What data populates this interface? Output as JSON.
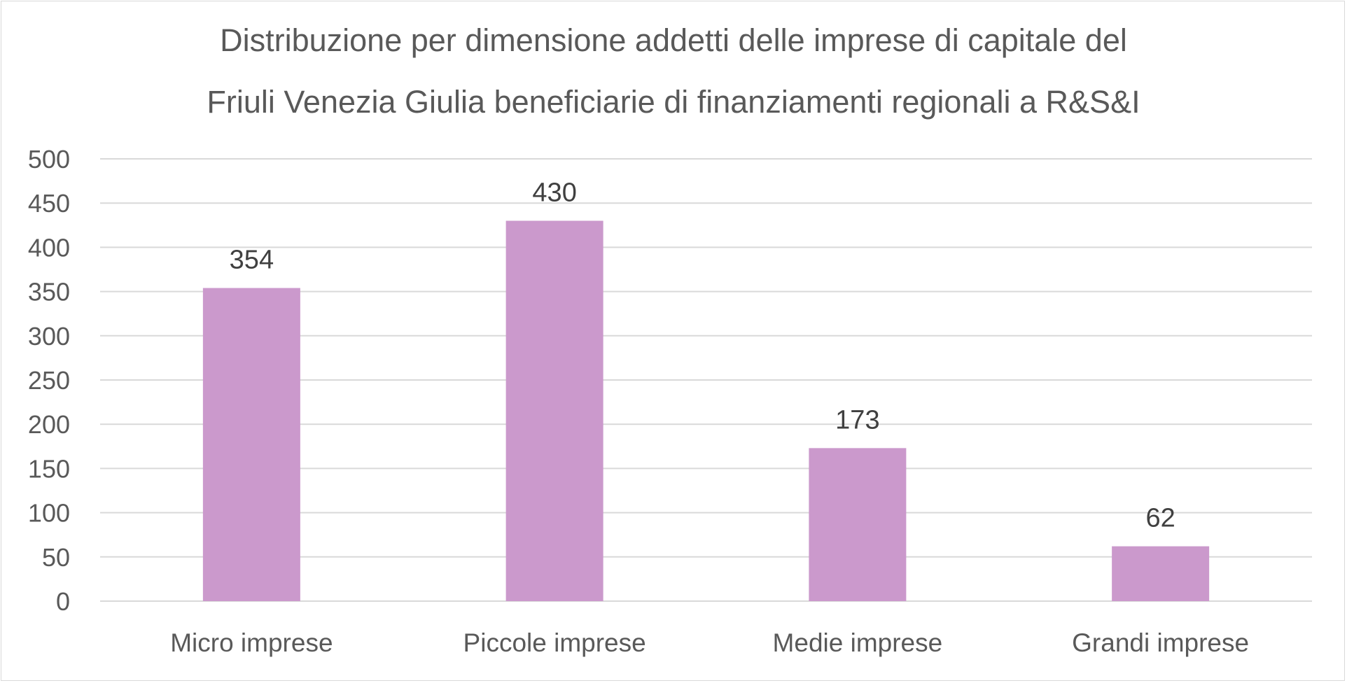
{
  "chart_data": {
    "type": "bar",
    "title_lines": [
      "Distribuzione per dimensione addetti delle imprese di capitale del",
      "Friuli Venezia Giulia beneficiarie di finanziamenti regionali a R&S&I"
    ],
    "categories": [
      "Micro imprese",
      "Piccole imprese",
      "Medie imprese",
      "Grandi imprese"
    ],
    "values": [
      354,
      430,
      173,
      62
    ],
    "data_labels": [
      "354",
      "430",
      "173",
      "62"
    ],
    "ylim": [
      0,
      500
    ],
    "yticks": [
      0,
      50,
      100,
      150,
      200,
      250,
      300,
      350,
      400,
      450,
      500
    ],
    "ytick_labels": [
      "0",
      "50",
      "100",
      "150",
      "200",
      "250",
      "300",
      "350",
      "400",
      "450",
      "500"
    ],
    "xlabel": "",
    "ylabel": "",
    "grid": true,
    "legend": "none",
    "colors": {
      "bar": "#cb99cc",
      "grid": "#d9d9d9",
      "text": "#595959",
      "data_label": "#404040"
    }
  }
}
